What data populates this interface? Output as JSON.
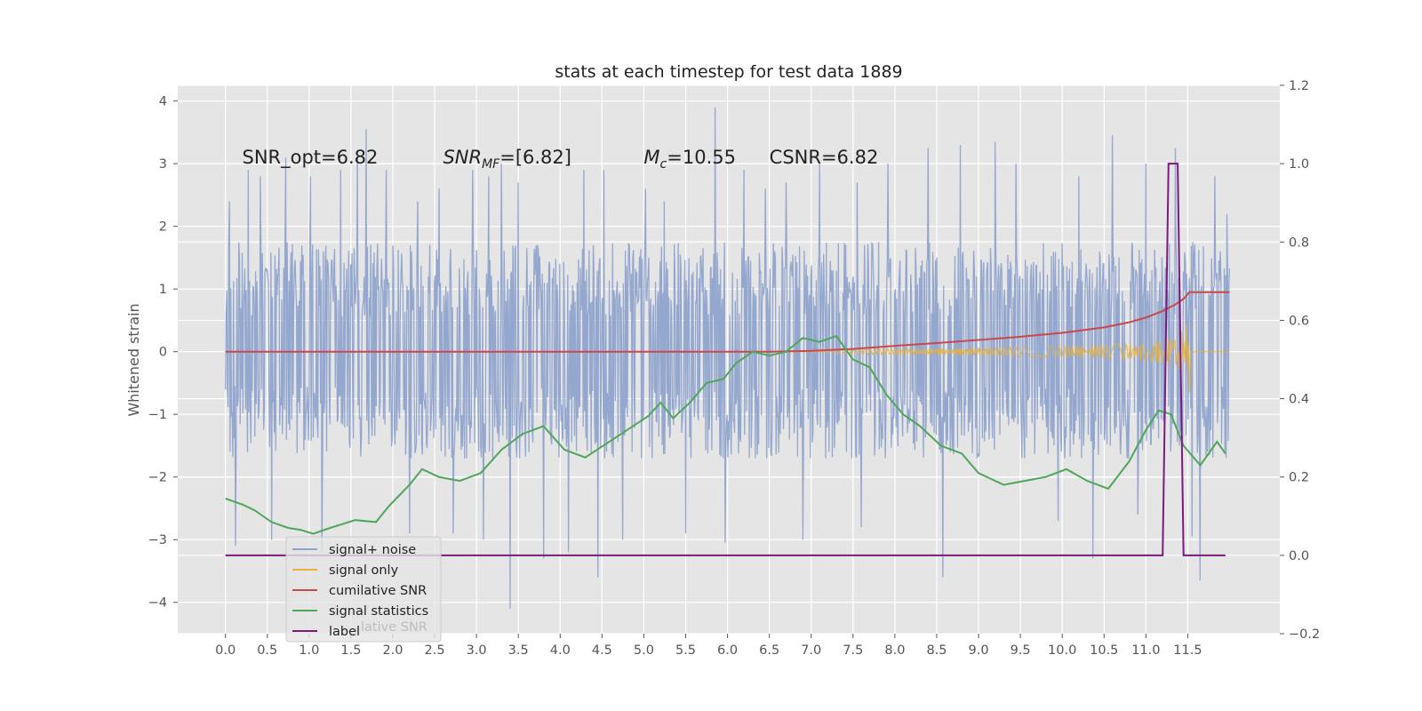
{
  "chart_data": {
    "type": "line",
    "title": "stats at each timestep for test data 1889",
    "xlabel": "",
    "ylabel": "Whitened strain",
    "ylabel_right": "",
    "xlim": [
      -0.57,
      12.6
    ],
    "ylim": [
      -4.5,
      4.25
    ],
    "ylim_right": [
      -0.2,
      1.2
    ],
    "grid": true,
    "x_ticks": [
      0,
      0.5,
      1,
      1.5,
      2,
      2.5,
      3,
      3.5,
      4,
      4.5,
      5,
      5.5,
      6,
      6.5,
      7,
      7.5,
      8,
      8.5,
      9,
      9.5,
      10,
      10.5,
      11,
      11.5
    ],
    "x_tick_labels": [
      "0.0",
      "0.5",
      "1.0",
      "1.5",
      "2.0",
      "2.5",
      "3.0",
      "3.5",
      "4.0",
      "4.5",
      "5.0",
      "5.5",
      "6.0",
      "6.5",
      "7.0",
      "7.5",
      "8.0",
      "8.5",
      "9.0",
      "9.5",
      "10.0",
      "10.5",
      "11.0",
      "11.5"
    ],
    "y_ticks": [
      -4,
      -3,
      -2,
      -1,
      0,
      1,
      2,
      3,
      4
    ],
    "y_tick_labels": [
      "−4",
      "−3",
      "−2",
      "−1",
      "0",
      "1",
      "2",
      "3",
      "4"
    ],
    "y_ticks_right": [
      -0.2,
      0.0,
      0.2,
      0.4,
      0.6,
      0.8,
      1.0,
      1.2
    ],
    "y_tick_labels_right": [
      "−0.2",
      "0.0",
      "0.2",
      "0.4",
      "0.6",
      "0.8",
      "1.0",
      "1.2"
    ],
    "annotations": [
      {
        "id": "snr-opt",
        "text": "SNR_opt=6.82",
        "x": 0.2,
        "y": 3.1
      },
      {
        "id": "snr-mf",
        "text_main": "SNR",
        "text_sub": "MF",
        "text_rest": "=[6.82]",
        "x": 2.6,
        "y": 3.1
      },
      {
        "id": "mc",
        "text_main": "M",
        "text_sub": "c",
        "text_rest": "=10.55",
        "x": 5.0,
        "y": 3.1
      },
      {
        "id": "csnr",
        "text": "CSNR=6.82",
        "x": 6.5,
        "y": 3.1
      }
    ],
    "legend": {
      "placement": "lower-left",
      "entries": [
        "signal+ noise",
        "signal only",
        "cumilative SNR",
        "signal statistics",
        "label"
      ],
      "ghost_text": "lative SNR"
    },
    "series": [
      {
        "name": "signal+ noise",
        "axis": "left",
        "color": "#8fa3cc",
        "style": "dense-noise",
        "x_range": [
          0,
          12.0
        ],
        "typical_band": [
          -1.7,
          1.8
        ],
        "spikes": [
          [
            0.05,
            2.4
          ],
          [
            0.12,
            -3.1
          ],
          [
            0.27,
            2.9
          ],
          [
            0.42,
            2.8
          ],
          [
            0.55,
            -3.0
          ],
          [
            0.72,
            3.1
          ],
          [
            1.02,
            2.8
          ],
          [
            1.15,
            -3.2
          ],
          [
            1.38,
            2.9
          ],
          [
            1.58,
            3.2
          ],
          [
            1.68,
            3.55
          ],
          [
            1.92,
            2.9
          ],
          [
            2.2,
            -2.9
          ],
          [
            2.3,
            2.4
          ],
          [
            2.55,
            2.6
          ],
          [
            2.72,
            -2.9
          ],
          [
            2.95,
            2.9
          ],
          [
            3.08,
            -3.0
          ],
          [
            3.15,
            2.8
          ],
          [
            3.3,
            3.0
          ],
          [
            3.4,
            -4.1
          ],
          [
            3.5,
            2.7
          ],
          [
            3.8,
            -3.3
          ],
          [
            4.1,
            -3.2
          ],
          [
            4.28,
            2.9
          ],
          [
            4.45,
            -3.6
          ],
          [
            4.52,
            2.9
          ],
          [
            4.75,
            -3.0
          ],
          [
            5.02,
            2.6
          ],
          [
            5.24,
            2.4
          ],
          [
            5.5,
            -2.9
          ],
          [
            5.85,
            3.9
          ],
          [
            5.97,
            -3.05
          ],
          [
            6.2,
            2.9
          ],
          [
            6.45,
            2.6
          ],
          [
            6.7,
            2.7
          ],
          [
            6.9,
            -3.0
          ],
          [
            7.1,
            3.0
          ],
          [
            7.55,
            2.7
          ],
          [
            7.6,
            -2.8
          ],
          [
            7.92,
            3.0
          ],
          [
            8.4,
            3.25
          ],
          [
            8.57,
            -3.6
          ],
          [
            8.78,
            3.3
          ],
          [
            9.2,
            3.35
          ],
          [
            9.45,
            3.0
          ],
          [
            9.95,
            -2.7
          ],
          [
            10.2,
            2.8
          ],
          [
            10.37,
            -3.3
          ],
          [
            10.6,
            3.45
          ],
          [
            10.9,
            -2.6
          ],
          [
            11.0,
            3.0
          ],
          [
            11.35,
            3.25
          ],
          [
            11.55,
            -2.95
          ],
          [
            11.65,
            -3.65
          ],
          [
            11.82,
            2.8
          ],
          [
            11.97,
            2.2
          ]
        ]
      },
      {
        "name": "signal only",
        "axis": "left",
        "color": "#e8b23c",
        "style": "chirp",
        "start_x": 7.3,
        "peak_x": 11.52,
        "peak_amplitude": 0.72,
        "after_peak": 0
      },
      {
        "name": "cumilative SNR",
        "axis": "right",
        "color": "#c9484d",
        "x": [
          0,
          6.5,
          7.0,
          7.5,
          8.0,
          8.5,
          9.0,
          9.5,
          10.0,
          10.5,
          10.8,
          11.0,
          11.2,
          11.35,
          11.45,
          11.52,
          12.0
        ],
        "y": [
          0.52,
          0.52,
          0.522,
          0.527,
          0.535,
          0.542,
          0.55,
          0.558,
          0.568,
          0.582,
          0.595,
          0.607,
          0.624,
          0.64,
          0.655,
          0.672,
          0.672
        ]
      },
      {
        "name": "signal statistics",
        "axis": "right",
        "color": "#4fa65a",
        "x": [
          0,
          0.2,
          0.35,
          0.55,
          0.75,
          0.9,
          1.05,
          1.25,
          1.55,
          1.8,
          1.95,
          2.2,
          2.35,
          2.55,
          2.8,
          3.05,
          3.3,
          3.55,
          3.8,
          4.05,
          4.3,
          4.55,
          4.8,
          5.05,
          5.2,
          5.35,
          5.55,
          5.75,
          5.95,
          6.1,
          6.3,
          6.5,
          6.7,
          6.9,
          7.1,
          7.3,
          7.5,
          7.7,
          7.9,
          8.1,
          8.3,
          8.55,
          8.8,
          9.0,
          9.3,
          9.55,
          9.8,
          10.05,
          10.3,
          10.55,
          10.8,
          11.0,
          11.15,
          11.3,
          11.45,
          11.65,
          11.85,
          11.95
        ],
        "y": [
          0.145,
          0.13,
          0.115,
          0.085,
          0.07,
          0.065,
          0.055,
          0.07,
          0.09,
          0.085,
          0.125,
          0.18,
          0.22,
          0.2,
          0.19,
          0.21,
          0.27,
          0.31,
          0.33,
          0.27,
          0.25,
          0.285,
          0.32,
          0.355,
          0.39,
          0.35,
          0.39,
          0.44,
          0.45,
          0.49,
          0.52,
          0.51,
          0.52,
          0.555,
          0.545,
          0.56,
          0.5,
          0.48,
          0.41,
          0.36,
          0.33,
          0.28,
          0.26,
          0.21,
          0.18,
          0.19,
          0.2,
          0.22,
          0.19,
          0.17,
          0.24,
          0.32,
          0.37,
          0.36,
          0.28,
          0.23,
          0.29,
          0.26
        ]
      },
      {
        "name": "label",
        "axis": "right",
        "color": "#7b1a7e",
        "x": [
          0,
          11.2,
          11.27,
          11.38,
          11.45,
          11.95
        ],
        "y": [
          0,
          0,
          1,
          1,
          0,
          0
        ]
      }
    ]
  }
}
